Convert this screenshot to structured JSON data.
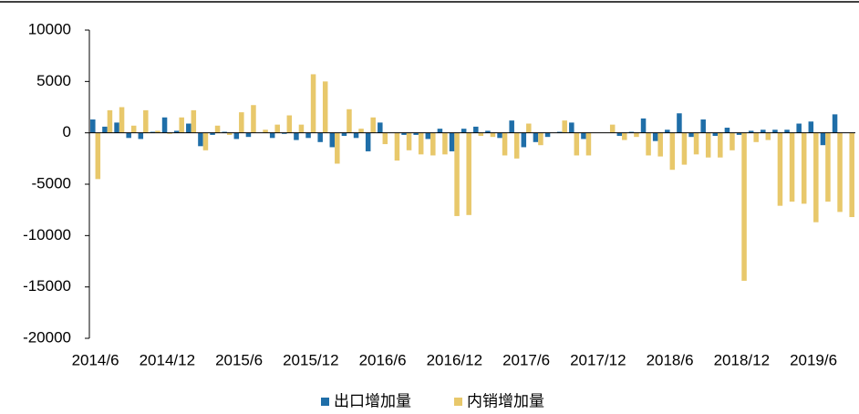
{
  "chart_data": {
    "type": "bar",
    "categories": [
      "2014/6",
      null,
      null,
      null,
      null,
      null,
      "2014/12",
      null,
      null,
      null,
      null,
      null,
      "2015/6",
      null,
      null,
      null,
      null,
      null,
      "2015/12",
      null,
      null,
      null,
      null,
      null,
      "2016/6",
      null,
      null,
      null,
      null,
      null,
      "2016/12",
      null,
      null,
      null,
      null,
      null,
      "2017/6",
      null,
      null,
      null,
      null,
      null,
      "2017/12",
      null,
      null,
      null,
      null,
      null,
      "2018/6",
      null,
      null,
      null,
      null,
      null,
      "2018/12",
      null,
      null,
      null,
      null,
      null,
      "2019/6",
      null,
      null,
      null
    ],
    "series": [
      {
        "name": "出口增加量",
        "color": "#1f6ea8",
        "values": [
          1300,
          600,
          1000,
          -500,
          -600,
          100,
          1500,
          200,
          900,
          -1300,
          -200,
          100,
          -600,
          -400,
          0,
          -500,
          -100,
          -700,
          -500,
          -900,
          -1400,
          -300,
          -500,
          -1800,
          1000,
          0,
          -200,
          -200,
          -600,
          400,
          -1800,
          400,
          600,
          200,
          -500,
          1200,
          -1400,
          -900,
          -400,
          100,
          1000,
          -600,
          0,
          0,
          -300,
          100,
          1400,
          -800,
          300,
          1900,
          -400,
          1300,
          -300,
          500,
          -200,
          200,
          300,
          300,
          300,
          900,
          1100,
          -1200,
          1800,
          0
        ]
      },
      {
        "name": "内销增加量",
        "color": "#e8c86b",
        "values": [
          -4500,
          2200,
          2500,
          700,
          2200,
          200,
          -100,
          1500,
          2200,
          -1700,
          700,
          -200,
          2000,
          2700,
          300,
          800,
          1700,
          800,
          5700,
          5000,
          -3000,
          2300,
          400,
          1500,
          -1100,
          -2700,
          -1700,
          -2100,
          -2200,
          -2100,
          -8100,
          -8000,
          -300,
          -400,
          -2200,
          -2500,
          900,
          -1200,
          0,
          1200,
          -2200,
          -2200,
          0,
          800,
          -700,
          -400,
          -2200,
          -2300,
          -3600,
          -3100,
          -2100,
          -2400,
          -2400,
          -1700,
          -14400,
          -900,
          -700,
          -7100,
          -6700,
          -6900,
          -8700,
          -6700,
          -7700,
          -8200
        ]
      }
    ],
    "ylim": [
      -20000,
      10000
    ],
    "yticks": [
      -20000,
      -15000,
      -10000,
      -5000,
      0,
      5000,
      10000
    ]
  }
}
